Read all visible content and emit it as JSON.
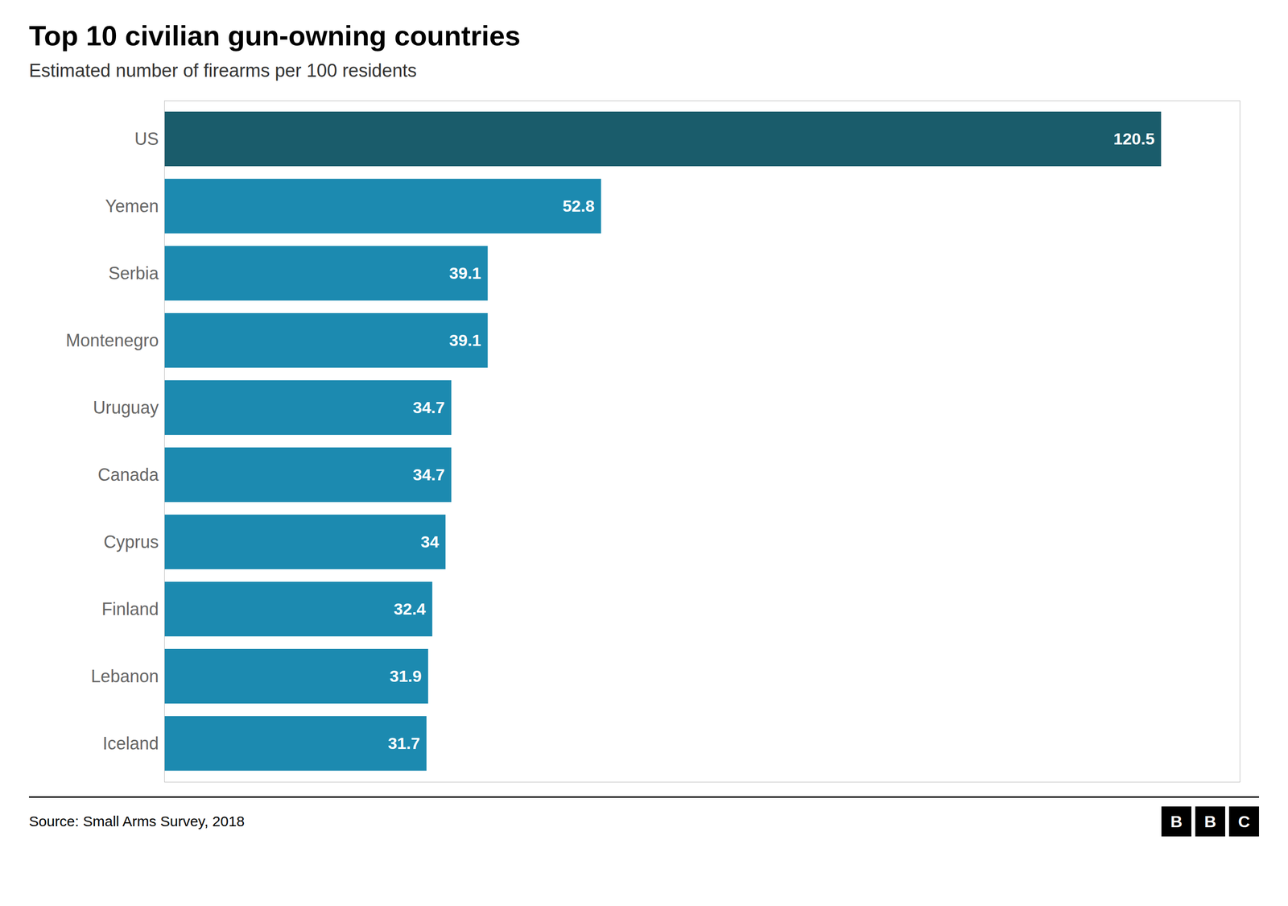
{
  "chart_data": {
    "type": "bar",
    "orientation": "horizontal",
    "title": "Top 10 civilian gun-owning countries",
    "subtitle": "Estimated number of firearms per 100 residents",
    "annotations": [
      "Source: Small Arms Survey, 2018",
      "BBC"
    ],
    "categories": [
      "US",
      "Yemen",
      "Serbia",
      "Montenegro",
      "Uruguay",
      "Canada",
      "Cyprus",
      "Finland",
      "Lebanon",
      "Iceland"
    ],
    "values": [
      120.5,
      52.8,
      39.1,
      39.1,
      34.7,
      34.7,
      34.0,
      32.4,
      31.9,
      31.7
    ],
    "colors": [
      "#1a5c6b",
      "#1c8ab0",
      "#1c8ab0",
      "#1c8ab0",
      "#1c8ab0",
      "#1c8ab0",
      "#1c8ab0",
      "#1c8ab0",
      "#1c8ab0",
      "#1c8ab0"
    ],
    "xlim": [
      0,
      130
    ],
    "data_labels": true,
    "tick_labels": "y",
    "grid": false
  }
}
